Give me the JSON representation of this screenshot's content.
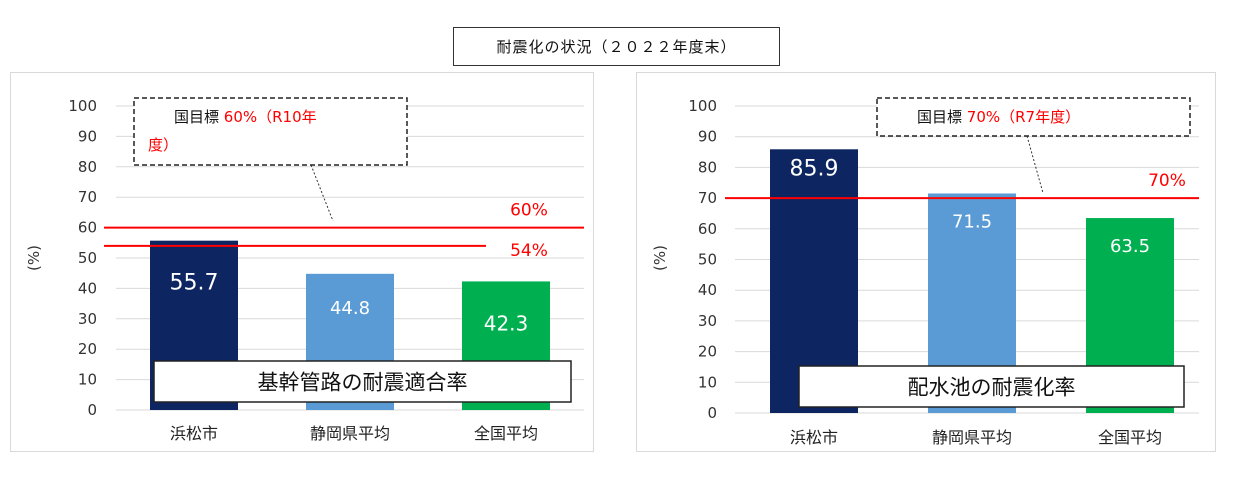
{
  "title": "耐震化の状況（２０２２年度末）",
  "colors": {
    "hamamatsu": "#0d2560",
    "shizuoka": "#5b9bd5",
    "national": "#00b050",
    "target_line": "#ff0000",
    "grid": "#d9d9d9"
  },
  "chart_data": [
    {
      "type": "bar",
      "subtitle": "基幹管路の耐震適合率",
      "categories": [
        "浜松市",
        "静岡県平均",
        "全国平均"
      ],
      "values": [
        55.7,
        44.8,
        42.3
      ],
      "value_labels": [
        "55.7",
        "44.8",
        "42.3"
      ],
      "ylabel": "(%)",
      "ylim": [
        0,
        100
      ],
      "yticks": [
        0,
        10,
        20,
        30,
        40,
        50,
        60,
        70,
        80,
        90,
        100
      ],
      "grid": true,
      "reference_lines": [
        {
          "value": 60,
          "label": "60%"
        },
        {
          "value": 54,
          "label": "54%"
        }
      ],
      "callout": {
        "prefix": "国目標 ",
        "highlight": "60%（R10年",
        "line2": "度）"
      }
    },
    {
      "type": "bar",
      "subtitle": "配水池の耐震化率",
      "categories": [
        "浜松市",
        "静岡県平均",
        "全国平均"
      ],
      "values": [
        85.9,
        71.5,
        63.5
      ],
      "value_labels": [
        "85.9",
        "71.5",
        "63.5"
      ],
      "ylabel": "(%)",
      "ylim": [
        0,
        100
      ],
      "yticks": [
        0,
        10,
        20,
        30,
        40,
        50,
        60,
        70,
        80,
        90,
        100
      ],
      "grid": true,
      "reference_lines": [
        {
          "value": 70,
          "label": "70%"
        }
      ],
      "callout": {
        "prefix": "国目標 ",
        "highlight": "70%（R7年度）",
        "line2": ""
      }
    }
  ]
}
